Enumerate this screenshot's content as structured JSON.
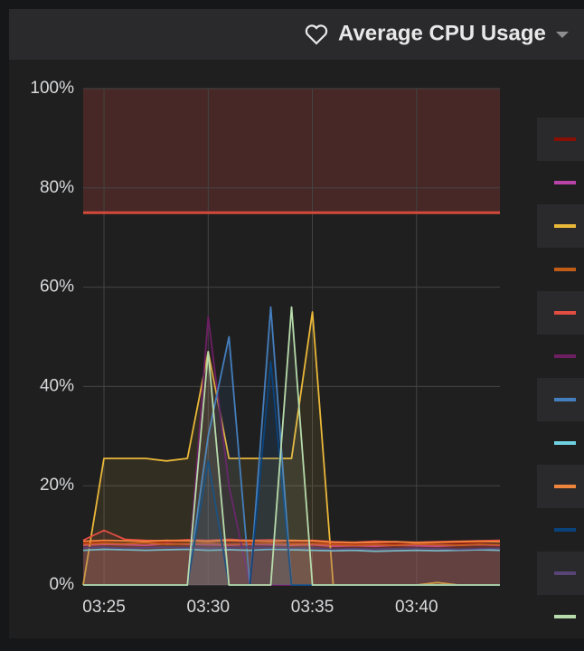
{
  "chart_data": {
    "type": "line",
    "title": "Average CPU Usage",
    "x": [
      "03:24",
      "03:25",
      "03:26",
      "03:27",
      "03:28",
      "03:29",
      "03:30",
      "03:31",
      "03:32",
      "03:33",
      "03:34",
      "03:35",
      "03:36",
      "03:37",
      "03:38",
      "03:39",
      "03:40",
      "03:41",
      "03:42",
      "03:43",
      "03:44"
    ],
    "xlim": [
      "03:24",
      "03:44"
    ],
    "xticks": [
      "03:25",
      "03:30",
      "03:35",
      "03:40"
    ],
    "ylim": [
      0,
      100
    ],
    "yticks": [
      {
        "value": 0,
        "label": "0%"
      },
      {
        "value": 20,
        "label": "20%"
      },
      {
        "value": 40,
        "label": "40%"
      },
      {
        "value": 60,
        "label": "60%"
      },
      {
        "value": 80,
        "label": "80%"
      },
      {
        "value": 100,
        "label": "100%"
      }
    ],
    "grid": true,
    "fill": true,
    "threshold": 75,
    "threshold_color": "#d44a3a",
    "series": [
      {
        "color": "#890f02",
        "values": [
          8.5,
          8.8,
          9,
          8.7,
          8.6,
          8.9,
          8.7,
          8.8,
          8.6,
          8.7,
          8.5,
          8.8,
          8.3,
          8.2,
          8.4,
          8.3,
          8.2,
          8.5,
          8.4,
          8.6,
          8.8
        ]
      },
      {
        "color": "#ba43a9",
        "values": [
          8,
          8.2,
          8.1,
          8,
          8.3,
          8.2,
          8.1,
          8,
          8.2,
          8.1,
          8,
          8.1,
          7.8,
          7.9,
          7.8,
          8,
          7.9,
          7.8,
          8,
          8.1,
          8
        ]
      },
      {
        "color": "#eab839",
        "values": [
          0,
          25.5,
          25.5,
          25.5,
          25,
          25.5,
          47,
          25.5,
          25.5,
          25.5,
          25.5,
          55,
          0,
          0,
          0,
          0,
          0,
          0.5,
          0,
          0,
          0
        ]
      },
      {
        "color": "#c15c17",
        "values": [
          8.2,
          8.4,
          8.3,
          8.5,
          8.2,
          8.3,
          8.4,
          8.2,
          8.3,
          8.4,
          8.2,
          8.3,
          8.1,
          8,
          8.1,
          8,
          8.2,
          8.1,
          8,
          8.2,
          8.1
        ]
      },
      {
        "color": "#e24d42",
        "values": [
          9,
          11,
          9.2,
          9,
          8.9,
          9.1,
          9,
          9.2,
          9,
          9.1,
          8.9,
          9,
          8.7,
          8.6,
          8.8,
          8.7,
          8.6,
          8.7,
          8.8,
          8.9,
          9
        ]
      },
      {
        "color": "#6d1f62",
        "values": [
          0,
          0,
          0,
          0,
          0,
          0,
          54,
          20,
          0,
          0,
          0,
          0,
          0,
          0,
          0,
          0,
          0,
          0,
          0,
          0,
          0
        ]
      },
      {
        "color": "#447ebc",
        "values": [
          0,
          0,
          0,
          0,
          0,
          0,
          30,
          50,
          0,
          56,
          0,
          0,
          0,
          0,
          0,
          0,
          0,
          0,
          0,
          0,
          0
        ]
      },
      {
        "color": "#6ed0e0",
        "values": [
          7,
          7.2,
          7.1,
          7,
          7.1,
          7.2,
          7,
          7.1,
          7,
          7.2,
          7.1,
          7,
          6.9,
          7,
          6.8,
          6.9,
          7,
          6.9,
          7,
          7.1,
          7
        ]
      },
      {
        "color": "#ef843c",
        "values": [
          8.8,
          9,
          8.9,
          8.8,
          9,
          8.9,
          8.8,
          9,
          8.9,
          8.8,
          9,
          8.9,
          8.6,
          8.5,
          8.6,
          8.7,
          8.5,
          8.6,
          8.7,
          8.8,
          8.7
        ]
      },
      {
        "color": "#0a437c",
        "values": [
          0,
          0,
          0,
          0,
          0,
          0,
          25,
          0,
          0,
          45,
          0,
          0,
          0,
          0,
          0,
          0,
          0,
          0,
          0,
          0,
          0
        ]
      },
      {
        "color": "#584477",
        "values": [
          7.5,
          7.6,
          7.4,
          7.5,
          7.6,
          7.5,
          7.4,
          7.5,
          7.6,
          7.5,
          7.4,
          7.5,
          7.2,
          7.3,
          7.2,
          7.3,
          7.4,
          7.3,
          7.2,
          7.3,
          7.4
        ]
      },
      {
        "color": "#b7dbab",
        "values": [
          0,
          0,
          0,
          0,
          0,
          0,
          47,
          0,
          0,
          0,
          56,
          0,
          0,
          0,
          0,
          0,
          0,
          0,
          0,
          0,
          0
        ]
      }
    ]
  }
}
